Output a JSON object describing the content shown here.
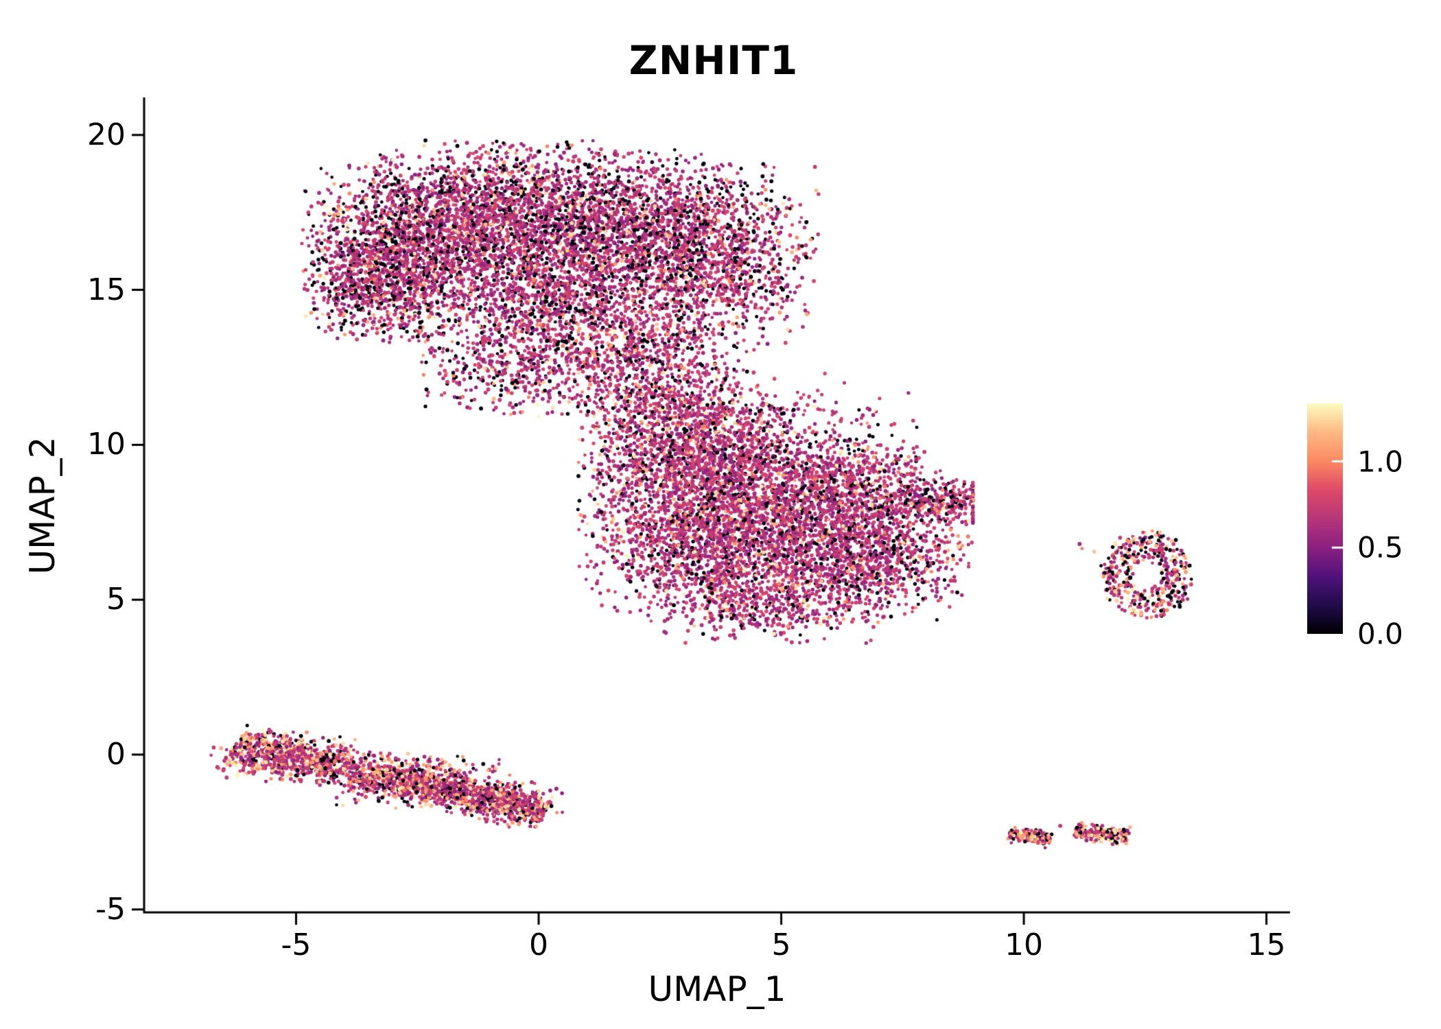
{
  "title": "ZNHIT1",
  "chart_data": {
    "type": "scatter",
    "title": "ZNHIT1",
    "xlabel": "UMAP_1",
    "ylabel": "UMAP_2",
    "xlim": [
      -8.1,
      15.2
    ],
    "ylim": [
      -5.1,
      21.2
    ],
    "grid": false,
    "legend_position": "right",
    "xticks": [
      {
        "value": -5,
        "label": "-5"
      },
      {
        "value": 0,
        "label": "0"
      },
      {
        "value": 5,
        "label": "5"
      },
      {
        "value": 10,
        "label": "10"
      },
      {
        "value": 15,
        "label": "15"
      }
    ],
    "yticks": [
      {
        "value": 20,
        "label": "20"
      },
      {
        "value": 15,
        "label": "15"
      },
      {
        "value": 10,
        "label": "10"
      },
      {
        "value": 5,
        "label": "5"
      },
      {
        "value": 0,
        "label": "0"
      },
      {
        "value": -5,
        "label": "-5"
      }
    ],
    "colorbar": {
      "vmax": 1.336,
      "ticks": [
        {
          "value": 1.0,
          "label": "1.0"
        },
        {
          "value": 0.5,
          "label": "0.5"
        },
        {
          "value": 0.0,
          "label": "0.0"
        }
      ]
    },
    "colormap": {
      "name": "magma",
      "stops": [
        [
          0.0,
          "#000004"
        ],
        [
          0.125,
          "#210c4a"
        ],
        [
          0.25,
          "#51127c"
        ],
        [
          0.375,
          "#8c2081"
        ],
        [
          0.5,
          "#b73779"
        ],
        [
          0.625,
          "#de4968"
        ],
        [
          0.75,
          "#fc8961"
        ],
        [
          0.875,
          "#feb984"
        ],
        [
          1.0,
          "#fcfdbf"
        ]
      ]
    },
    "value_ranges": {
      "zero": [
        0.0,
        0.06
      ],
      "mid": [
        0.5,
        0.82
      ],
      "high": [
        0.95,
        1.33
      ]
    },
    "point_groups": [
      {
        "name": "upper-mass",
        "frac_zero": 0.2,
        "frac_high": 0.09,
        "ymax": 19.85,
        "blobs": [
          {
            "type": "gauss",
            "cx": -2.6,
            "cy": 16.4,
            "sx": 1.05,
            "sy": 1.35,
            "n": 1600
          },
          {
            "type": "gauss",
            "cx": -0.6,
            "cy": 17.3,
            "sx": 1.3,
            "sy": 1.15,
            "n": 1700
          },
          {
            "type": "gauss",
            "cx": 1.8,
            "cy": 16.9,
            "sx": 1.15,
            "sy": 1.2,
            "n": 1500
          },
          {
            "type": "gauss",
            "cx": 3.7,
            "cy": 16.1,
            "sx": 0.95,
            "sy": 1.35,
            "n": 1100
          },
          {
            "type": "gauss",
            "cx": -3.5,
            "cy": 15.1,
            "sx": 0.6,
            "sy": 0.85,
            "n": 500
          },
          {
            "type": "gauss",
            "cx": 0.1,
            "cy": 14.6,
            "sx": 1.3,
            "sy": 0.9,
            "n": 900
          },
          {
            "type": "gauss",
            "cx": -0.2,
            "cy": 12.5,
            "sx": 1.05,
            "sy": 0.7,
            "n": 500
          },
          {
            "type": "gauss",
            "cx": 2.3,
            "cy": 13.1,
            "sx": 0.8,
            "sy": 0.9,
            "n": 450
          },
          {
            "type": "gauss",
            "cx": 2.9,
            "cy": 11.9,
            "sx": 1.0,
            "sy": 0.8,
            "n": 200
          }
        ]
      },
      {
        "name": "central-mass",
        "frac_zero": 0.14,
        "frac_high": 0.11,
        "xmax": 8.95,
        "blobs": [
          {
            "type": "gauss",
            "cx": 4.3,
            "cy": 8.6,
            "sx": 1.6,
            "sy": 1.45,
            "n": 2400
          },
          {
            "type": "gauss",
            "cx": 5.8,
            "cy": 6.6,
            "sx": 1.4,
            "sy": 1.1,
            "n": 1400
          },
          {
            "type": "gauss",
            "cx": 3.0,
            "cy": 9.8,
            "sx": 1.0,
            "sy": 0.95,
            "n": 800
          },
          {
            "type": "gauss",
            "cx": 3.1,
            "cy": 6.6,
            "sx": 1.0,
            "sy": 1.0,
            "n": 700
          },
          {
            "type": "gauss",
            "cx": 6.9,
            "cy": 8.5,
            "sx": 0.9,
            "sy": 0.7,
            "n": 450
          },
          {
            "type": "gauss",
            "cx": 8.35,
            "cy": 8.15,
            "sx": 0.5,
            "sy": 0.33,
            "n": 200
          },
          {
            "type": "gauss",
            "cx": 4.6,
            "cy": 4.8,
            "sx": 1.1,
            "sy": 0.55,
            "n": 400
          },
          {
            "type": "gauss",
            "cx": 2.7,
            "cy": 11.3,
            "sx": 0.85,
            "sy": 0.7,
            "n": 220
          },
          {
            "type": "gauss",
            "cx": 7.4,
            "cy": 6.3,
            "sx": 0.7,
            "sy": 0.8,
            "n": 220
          }
        ]
      },
      {
        "name": "lower-left-streak",
        "frac_zero": 0.12,
        "frac_high": 0.3,
        "blobs": [
          {
            "type": "stripe",
            "x0": -6.25,
            "y0": 0.3,
            "x1": 0.15,
            "y1": -1.85,
            "w": 0.3,
            "n": 1500
          },
          {
            "type": "gauss",
            "cx": -5.3,
            "cy": -0.05,
            "sx": 0.7,
            "sy": 0.38,
            "n": 320
          },
          {
            "type": "gauss",
            "cx": -2.4,
            "cy": -0.85,
            "sx": 0.9,
            "sy": 0.4,
            "n": 380
          },
          {
            "type": "gauss",
            "cx": -0.7,
            "cy": -1.5,
            "sx": 0.55,
            "sy": 0.3,
            "n": 240
          }
        ]
      },
      {
        "name": "right-ring-island",
        "frac_zero": 0.27,
        "frac_high": 0.25,
        "blobs": [
          {
            "type": "ring",
            "cx": 12.55,
            "cy": 5.8,
            "r0": 0.3,
            "r1": 0.92,
            "ry": 1.5,
            "n": 420
          },
          {
            "type": "points",
            "pts": [
              [
                11.2,
                6.65
              ],
              [
                11.45,
                6.55
              ],
              [
                11.15,
                6.8
              ],
              [
                13.05,
                6.9
              ]
            ]
          }
        ]
      },
      {
        "name": "bottom-right-islands",
        "frac_zero": 0.2,
        "frac_high": 0.38,
        "blobs": [
          {
            "type": "stripe",
            "x0": 9.7,
            "y0": -2.55,
            "x1": 10.55,
            "y1": -2.75,
            "w": 0.12,
            "n": 150
          },
          {
            "type": "stripe",
            "x0": 11.05,
            "y0": -2.5,
            "x1": 12.15,
            "y1": -2.65,
            "w": 0.13,
            "n": 210
          },
          {
            "type": "points",
            "pts": [
              [
                10.75,
                -2.3
              ]
            ]
          }
        ]
      },
      {
        "name": "stray-points",
        "frac_zero": 0.15,
        "frac_high": 0.2,
        "blobs": [
          {
            "type": "points",
            "pts": [
              [
                6.75,
                3.6
              ],
              [
                0.6,
                11.0
              ],
              [
                1.2,
                10.7
              ],
              [
                5.9,
                12.3
              ],
              [
                6.3,
                12.0
              ],
              [
                0.0,
                10.9
              ]
            ]
          }
        ]
      }
    ]
  }
}
